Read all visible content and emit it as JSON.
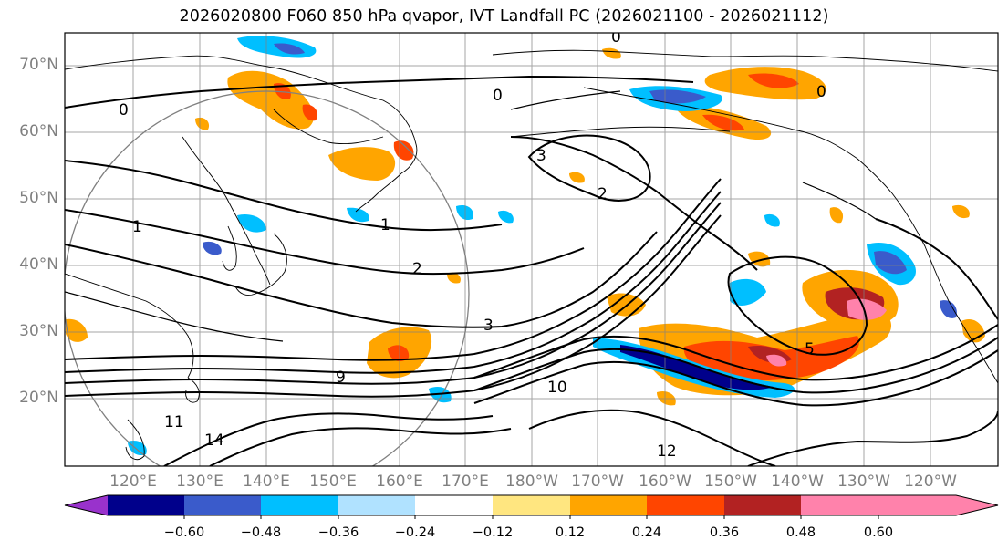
{
  "title": "2026020800 F060 850 hPa qvapor, IVT Landfall PC (2026021100 - 2026021112)",
  "lat_labels": [
    "70°N",
    "60°N",
    "50°N",
    "40°N",
    "30°N",
    "20°N"
  ],
  "lon_labels": [
    "120°E",
    "130°E",
    "140°E",
    "150°E",
    "160°E",
    "170°E",
    "180°W",
    "170°W",
    "160°W",
    "150°W",
    "140°W",
    "130°W",
    "120°W"
  ],
  "contour_labels": [
    "0",
    "0",
    "0",
    "0",
    "1",
    "1",
    "2",
    "2",
    "3",
    "3",
    "5",
    "9",
    "10",
    "11",
    "12",
    "14"
  ],
  "colorbar": {
    "colors": [
      "#9932cc",
      "#00008b",
      "#3a5bcb",
      "#00bfff",
      "#b0e2ff",
      "#ffffff",
      "#ffe680",
      "#ffa500",
      "#ff4500",
      "#b22222",
      "#ff82ab"
    ],
    "ticks": [
      "−0.60",
      "−0.48",
      "−0.36",
      "−0.24",
      "−0.12",
      "0.12",
      "0.24",
      "0.36",
      "0.48",
      "0.60"
    ]
  },
  "colors": {
    "grid": "#808080",
    "contour": "#000000",
    "coast": "#000000",
    "range_ring": "#808080"
  }
}
